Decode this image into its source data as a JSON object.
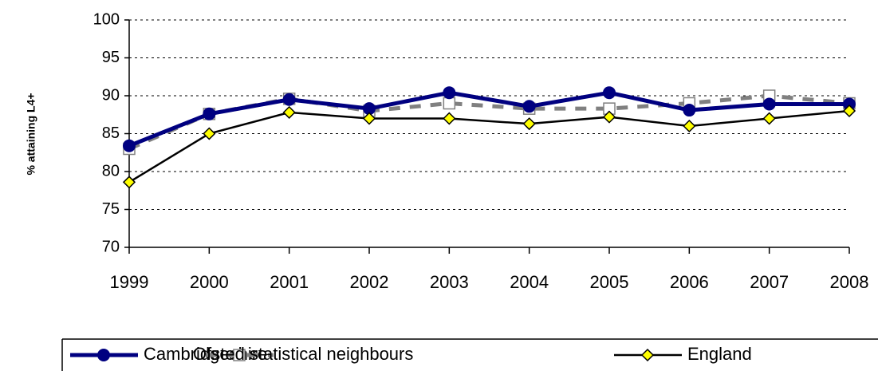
{
  "chart_data": {
    "type": "line",
    "y_label": "% attaining L4+",
    "categories": [
      "1999",
      "2000",
      "2001",
      "2002",
      "2003",
      "2004",
      "2005",
      "2006",
      "2007",
      "2008"
    ],
    "series": [
      {
        "name": "Cambridgeshire",
        "color": "#000080",
        "marker": "circle",
        "values": [
          83.4,
          87.6,
          89.5,
          88.3,
          90.4,
          88.6,
          90.4,
          88.1,
          88.9,
          88.9
        ]
      },
      {
        "name": "Ofsted statistical neighbours",
        "color": "#808080",
        "marker": "square",
        "dashed": true,
        "values": [
          83,
          87.6,
          89.6,
          88,
          89,
          88.3,
          88.3,
          89,
          90,
          89
        ]
      },
      {
        "name": "England",
        "color": "#000000",
        "marker": "diamond",
        "values": [
          78.6,
          85,
          87.8,
          87,
          87,
          86.3,
          87.2,
          86,
          87,
          88
        ]
      }
    ],
    "ylim": [
      70,
      100
    ],
    "yticks": [
      70,
      75,
      80,
      85,
      90,
      95,
      100
    ],
    "grid": true,
    "legend": "bottom"
  }
}
